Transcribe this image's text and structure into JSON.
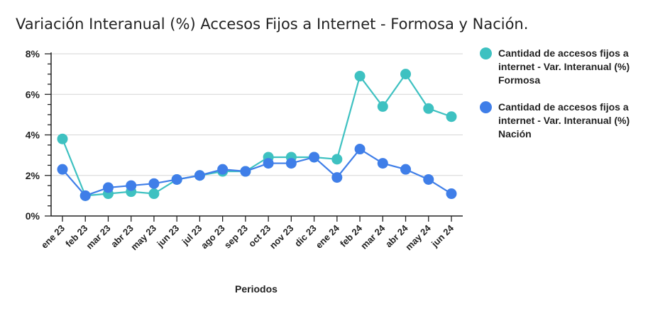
{
  "chart_data": {
    "type": "line",
    "title": "Variación Interanual (%) Accesos Fijos a Internet - Formosa y Nación.",
    "xlabel": "Periodos",
    "ylabel": "",
    "ylim": [
      0,
      8
    ],
    "yticks": [
      "0%",
      "2%",
      "4%",
      "6%",
      "8%"
    ],
    "grid": true,
    "legend_position": "right",
    "categories": [
      "ene 23",
      "feb 23",
      "mar 23",
      "abr 23",
      "may 23",
      "jun 23",
      "jul 23",
      "ago 23",
      "sep 23",
      "oct 23",
      "nov 23",
      "dic 23",
      "ene 24",
      "feb 24",
      "mar 24",
      "abr 24",
      "may 24",
      "jun 24"
    ],
    "series": [
      {
        "name": "Cantidad de accesos fijos a internet - Var. Interanual (%)  Formosa",
        "color": "#3ec1c1",
        "values": [
          3.8,
          1.0,
          1.1,
          1.2,
          1.1,
          1.8,
          2.0,
          2.2,
          2.2,
          2.9,
          2.9,
          2.9,
          2.8,
          6.9,
          5.4,
          7.0,
          5.3,
          4.9
        ]
      },
      {
        "name": "Cantidad de accesos fijos a internet - Var. Interanual (%)  Nación",
        "color": "#3f7ee8",
        "values": [
          2.3,
          1.0,
          1.4,
          1.5,
          1.6,
          1.8,
          2.0,
          2.3,
          2.2,
          2.6,
          2.6,
          2.9,
          1.9,
          3.3,
          2.6,
          2.3,
          1.8,
          1.1
        ]
      }
    ]
  }
}
